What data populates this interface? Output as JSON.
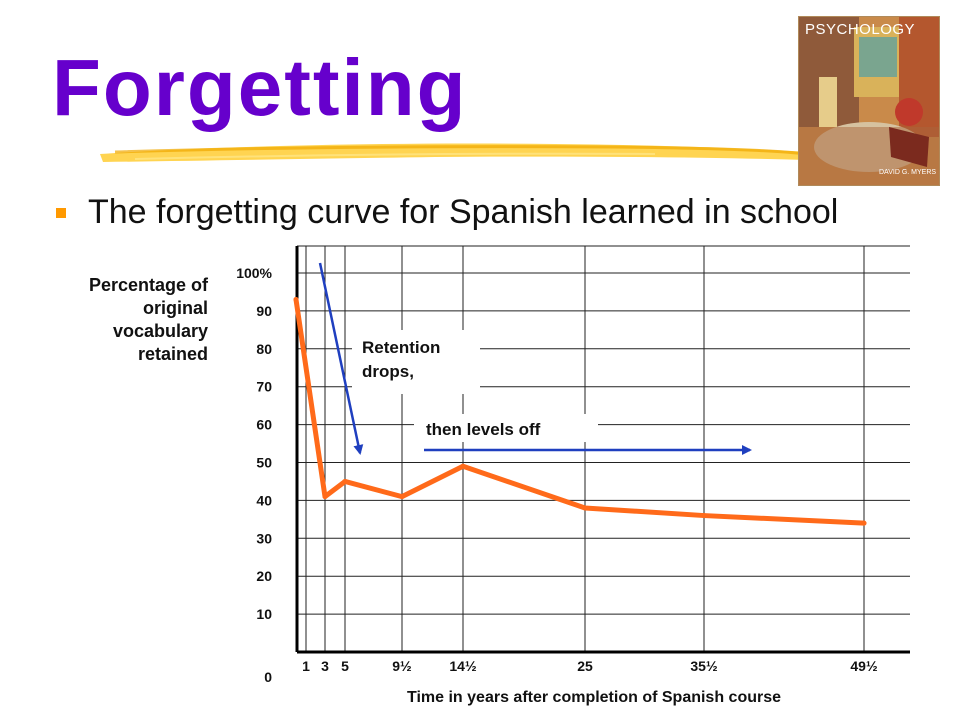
{
  "slide": {
    "title": "Forgetting",
    "bullet": "The forgetting curve for Spanish learned in school",
    "cover": {
      "title": "PSYCHOLOGY",
      "author": "DAVID G. MYERS"
    }
  },
  "colors": {
    "title": "#6600cc",
    "bullet": "#ff9900",
    "curve": "#ff6a1a",
    "arrows": "#1f3fbf"
  },
  "chart_data": {
    "type": "line",
    "title": "",
    "ylabel_lines": [
      "Percentage of",
      "original",
      "vocabulary",
      "retained"
    ],
    "xlabel": "Time in years after completion of Spanish course",
    "ylim": [
      0,
      100
    ],
    "y_ticks": [
      {
        "value": 0,
        "label": "0"
      },
      {
        "value": 10,
        "label": "10"
      },
      {
        "value": 20,
        "label": "20"
      },
      {
        "value": 30,
        "label": "30"
      },
      {
        "value": 40,
        "label": "40"
      },
      {
        "value": 50,
        "label": "50"
      },
      {
        "value": 60,
        "label": "60"
      },
      {
        "value": 70,
        "label": "70"
      },
      {
        "value": 80,
        "label": "80"
      },
      {
        "value": 90,
        "label": "90"
      },
      {
        "value": 100,
        "label": "100%"
      }
    ],
    "x_ticks": [
      "1",
      "3",
      "5",
      "9½",
      "14½",
      "25",
      "35½",
      "49½"
    ],
    "grid": true,
    "series": [
      {
        "x": [
          "0",
          "3",
          "5",
          "9½",
          "14½",
          "25",
          "35½",
          "49½"
        ],
        "values": [
          93,
          41,
          45,
          41,
          49,
          38,
          36,
          34
        ]
      }
    ],
    "annotations": {
      "drop_label_lines": [
        "Retention",
        "drops,"
      ],
      "level_label": "then levels off"
    }
  }
}
